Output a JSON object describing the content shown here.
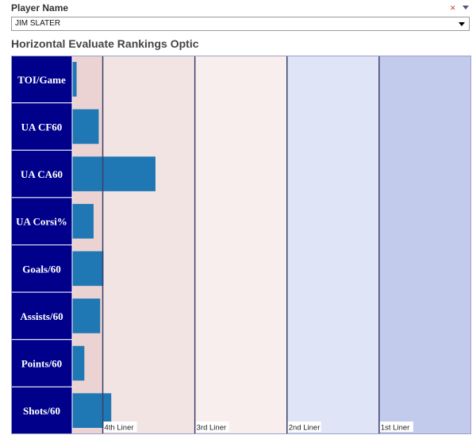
{
  "filter": {
    "label": "Player Name",
    "selected_value": "JIM SLATER",
    "clear_icon": "clear-filter-icon",
    "menu_icon": "dropdown-arrow-icon"
  },
  "title": "Horizontal Evaluate Rankings Optic",
  "colors": {
    "row_label_bg": "#00008b",
    "bar": "#1f77b4",
    "band_4th": "#f3e4e4",
    "band_3rd": "#f9eeee",
    "band_2nd": "#dfe4f7",
    "band_1st": "#c3cbec",
    "band_first_sliver": "#ecd3d3",
    "divider": "#3a3f6b"
  },
  "chart_data": {
    "type": "bar",
    "orientation": "horizontal",
    "categories": [
      "TOI/Game",
      "UA CF60",
      "UA CA60",
      "UA Corsi%",
      "Goals/60",
      "Assists/60",
      "Points/60",
      "Shots/60"
    ],
    "values": [
      1.2,
      7.2,
      22.6,
      5.8,
      8.5,
      7.6,
      3.3,
      10.6
    ],
    "band_labels": [
      "4th Liner",
      "3rd Liner",
      "2nd Liner",
      "1st Liner"
    ],
    "band_thresholds": [
      8.3,
      33.3,
      58.3,
      83.3
    ],
    "xlim": [
      0,
      108.3
    ]
  }
}
